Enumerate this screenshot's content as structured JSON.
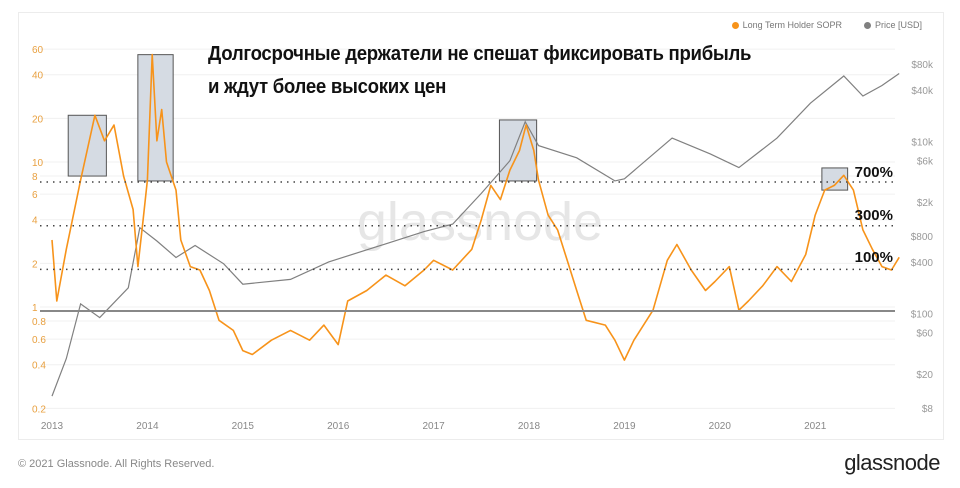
{
  "chart_data": {
    "type": "line",
    "title": "Долгосрочные держатели не спешат фиксировать прибыль и ждут более высоких цен",
    "title_lines": [
      "Долгосрочные держатели не спешат фиксировать прибыль",
      "и ждут более высоких цен"
    ],
    "legend": {
      "placement": "top-right",
      "items": [
        {
          "label": "Long Term Holder SOPR",
          "color": "#f7931a"
        },
        {
          "label": "Price [USD]",
          "color": "#808080"
        }
      ]
    },
    "x_ticks": [
      "2013",
      "2014",
      "2015",
      "2016",
      "2017",
      "2018",
      "2019",
      "2020",
      "2021"
    ],
    "xlim": [
      2012.95,
      2021.95
    ],
    "y_left": {
      "scale": "log",
      "ticks": [
        "0.2",
        "0.4",
        "0.6",
        "0.8",
        "1",
        "2",
        "4",
        "6",
        "8",
        "10",
        "20",
        "40",
        "60"
      ],
      "color": "#e8a040",
      "ylim": [
        0.2,
        60
      ]
    },
    "y_right": {
      "scale": "log",
      "ticks": [
        "$8",
        "$20",
        "$60",
        "$100",
        "$400",
        "$800",
        "$2k",
        "$6k",
        "$10k",
        "$40k",
        "$80k"
      ],
      "tick_values": [
        8,
        20,
        60,
        100,
        400,
        800,
        2000,
        6000,
        10000,
        40000,
        80000
      ],
      "ylim": [
        8,
        80000
      ]
    },
    "grid": true,
    "series": [
      {
        "name": "Long Term Holder SOPR",
        "axis": "left",
        "color": "#f7931a",
        "x": [
          2013.0,
          2013.05,
          2013.15,
          2013.3,
          2013.45,
          2013.55,
          2013.65,
          2013.75,
          2013.85,
          2013.9,
          2013.95,
          2014.0,
          2014.05,
          2014.1,
          2014.15,
          2014.2,
          2014.3,
          2014.35,
          2014.45,
          2014.55,
          2014.65,
          2014.75,
          2014.9,
          2015.0,
          2015.1,
          2015.3,
          2015.5,
          2015.7,
          2015.85,
          2016.0,
          2016.1,
          2016.3,
          2016.5,
          2016.7,
          2016.9,
          2017.0,
          2017.2,
          2017.4,
          2017.5,
          2017.6,
          2017.7,
          2017.8,
          2017.9,
          2017.97,
          2018.05,
          2018.1,
          2018.2,
          2018.3,
          2018.4,
          2018.5,
          2018.6,
          2018.8,
          2018.9,
          2019.0,
          2019.1,
          2019.3,
          2019.45,
          2019.55,
          2019.7,
          2019.85,
          2019.95,
          2020.1,
          2020.2,
          2020.3,
          2020.45,
          2020.6,
          2020.75,
          2020.9,
          2021.0,
          2021.1,
          2021.2,
          2021.3,
          2021.4,
          2021.5,
          2021.6,
          2021.7,
          2021.8,
          2021.88
        ],
        "y": [
          2.9,
          1.1,
          2.5,
          7.5,
          21,
          14,
          18,
          8,
          4.7,
          1.9,
          3.7,
          7.5,
          55,
          14,
          23,
          10,
          6.4,
          2.9,
          1.9,
          1.8,
          1.3,
          0.81,
          0.69,
          0.5,
          0.47,
          0.59,
          0.69,
          0.59,
          0.75,
          0.55,
          1.1,
          1.3,
          1.66,
          1.4,
          1.8,
          2.1,
          1.8,
          2.5,
          4,
          6.9,
          5.5,
          8.8,
          12,
          18,
          12,
          7.5,
          4.3,
          3.4,
          2.1,
          1.3,
          0.81,
          0.75,
          0.59,
          0.43,
          0.59,
          0.95,
          2.1,
          2.7,
          1.8,
          1.3,
          1.5,
          1.9,
          0.95,
          1.1,
          1.4,
          1.9,
          1.5,
          2.3,
          4.3,
          6.4,
          6.9,
          8.1,
          6.4,
          3.4,
          2.5,
          1.9,
          1.8,
          2.2
        ]
      },
      {
        "name": "Price [USD]",
        "axis": "right",
        "color": "#808080",
        "x": [
          2013.0,
          2013.15,
          2013.3,
          2013.5,
          2013.8,
          2013.92,
          2014.1,
          2014.3,
          2014.5,
          2014.8,
          2015.0,
          2015.5,
          2015.9,
          2016.5,
          2016.9,
          2017.2,
          2017.5,
          2017.8,
          2017.96,
          2018.1,
          2018.5,
          2018.9,
          2019.0,
          2019.5,
          2019.9,
          2020.2,
          2020.6,
          2020.95,
          2021.3,
          2021.5,
          2021.7,
          2021.88
        ],
        "y": [
          11,
          30,
          130,
          90,
          200,
          1000,
          700,
          450,
          620,
          380,
          220,
          250,
          400,
          650,
          900,
          1100,
          2500,
          6000,
          17000,
          9000,
          6500,
          3500,
          3700,
          11000,
          7200,
          5000,
          11000,
          28000,
          58000,
          34000,
          45000,
          62000
        ]
      }
    ],
    "reference_lines": [
      {
        "value": 8,
        "label": "700%",
        "style": "dotted"
      },
      {
        "value": 4,
        "label": "300%",
        "style": "dotted"
      },
      {
        "value": 2,
        "label": "100%",
        "style": "dotted"
      },
      {
        "value": 1,
        "label": "",
        "style": "solid"
      }
    ],
    "highlight_boxes": [
      {
        "x": [
          2013.17,
          2013.57
        ],
        "y": [
          8,
          21
        ]
      },
      {
        "x": [
          2013.9,
          2014.27
        ],
        "y": [
          7.4,
          55
        ]
      },
      {
        "x": [
          2017.69,
          2018.08
        ],
        "y": [
          7.4,
          19.5
        ]
      },
      {
        "x": [
          2021.07,
          2021.34
        ],
        "y": [
          6.4,
          9.1
        ]
      }
    ]
  },
  "watermark": "glassnode",
  "footer": {
    "copyright": "© 2021 Glassnode. All Rights Reserved.",
    "logo": "glassnode"
  }
}
